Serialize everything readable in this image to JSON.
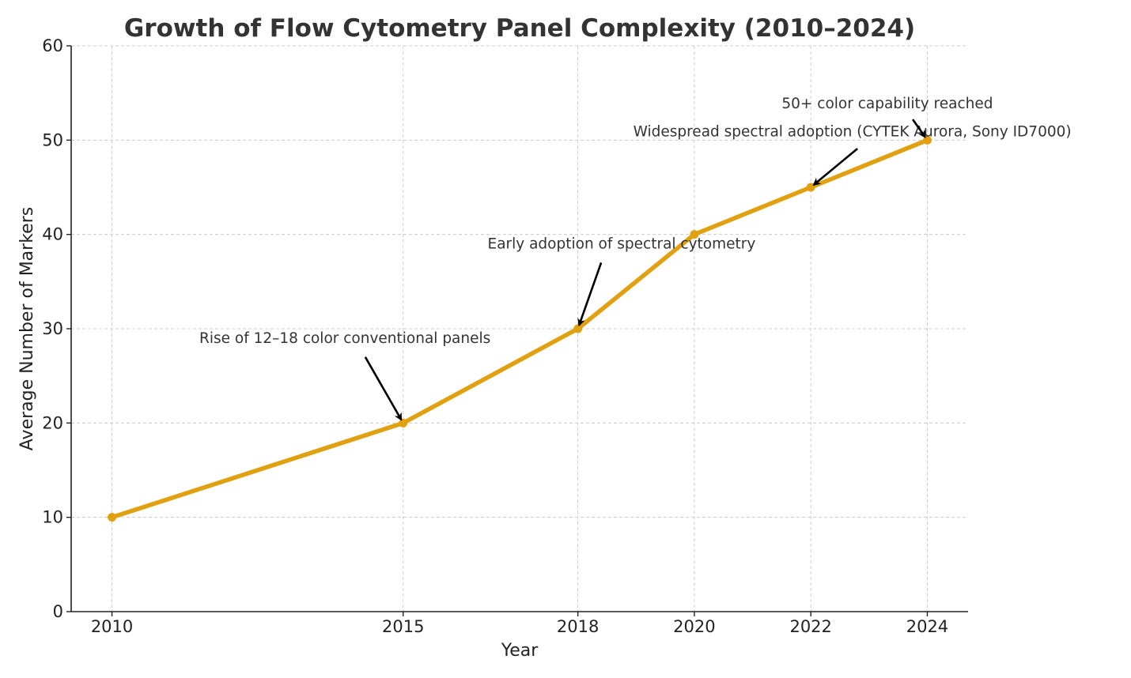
{
  "chart_data": {
    "type": "line",
    "title": "Growth of Flow Cytometry Panel Complexity (2010–2024)",
    "xlabel": "Year",
    "ylabel": "Average Number of Markers",
    "xlim": [
      2009.3,
      2024.7
    ],
    "ylim": [
      0,
      60
    ],
    "x_ticks": [
      2010,
      2015,
      2018,
      2020,
      2022,
      2024
    ],
    "y_ticks": [
      0,
      10,
      20,
      30,
      40,
      50,
      60
    ],
    "grid": true,
    "series": [
      {
        "name": "Average Number of Markers",
        "color": "#E0A010",
        "x": [
          2010,
          2015,
          2018,
          2020,
          2022,
          2024
        ],
        "values": [
          10,
          20,
          30,
          40,
          45,
          50
        ]
      }
    ],
    "annotations": [
      {
        "text": "Rise of 12–18 color conventional panels",
        "point": [
          2015,
          20
        ],
        "text_pos": [
          2011.5,
          28.5
        ],
        "tail": [
          2014.35,
          27.0
        ],
        "anchor": "start"
      },
      {
        "text": "Early adoption of spectral cytometry",
        "point": [
          2018,
          30
        ],
        "text_pos": [
          2016.45,
          38.5
        ],
        "tail": [
          2018.4,
          37.0
        ],
        "anchor": "start"
      },
      {
        "text": "Widespread spectral adoption (CYTEK Aurora, Sony ID7000)",
        "point": [
          2022,
          45
        ],
        "text_pos": [
          2018.95,
          50.4
        ],
        "tail": [
          2022.8,
          49.1
        ],
        "anchor": "start"
      },
      {
        "text": "50+ color capability reached",
        "point": [
          2024,
          50
        ],
        "text_pos": [
          2021.5,
          53.4
        ],
        "tail": [
          2023.75,
          52.2
        ],
        "anchor": "start"
      }
    ]
  }
}
